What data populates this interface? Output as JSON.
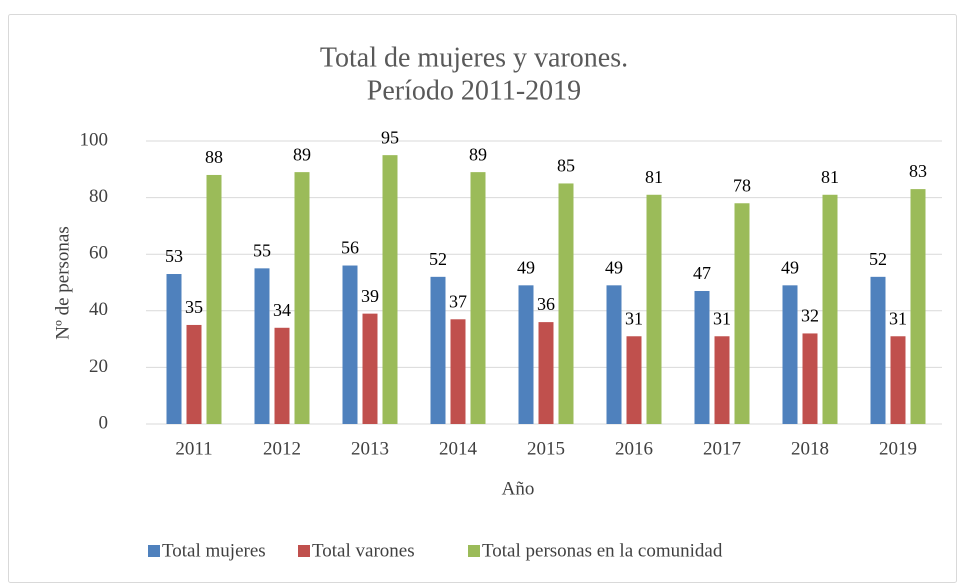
{
  "chart_data": {
    "type": "bar",
    "title": [
      "Total de mujeres y varones.",
      "Período 2011-2019"
    ],
    "x_label": "Año",
    "y_label": "Nº de personas",
    "categories": [
      "2011",
      "2012",
      "2013",
      "2014",
      "2015",
      "2016",
      "2017",
      "2018",
      "2019"
    ],
    "series": [
      {
        "name": "Total mujeres",
        "color": "#4f81bd",
        "values": [
          53,
          55,
          56,
          52,
          49,
          49,
          47,
          49,
          52
        ]
      },
      {
        "name": "Total varones",
        "color": "#c0504d",
        "values": [
          35,
          34,
          39,
          37,
          36,
          31,
          31,
          32,
          31
        ]
      },
      {
        "name": "Total personas en la comunidad",
        "color": "#9bbb59",
        "values": [
          88,
          89,
          95,
          89,
          85,
          81,
          78,
          81,
          83
        ]
      }
    ],
    "ylim": [
      0,
      100
    ],
    "yticks": [
      0,
      20,
      40,
      60,
      80,
      100
    ],
    "grid": true,
    "legend": "bottom",
    "data_labels": true
  }
}
